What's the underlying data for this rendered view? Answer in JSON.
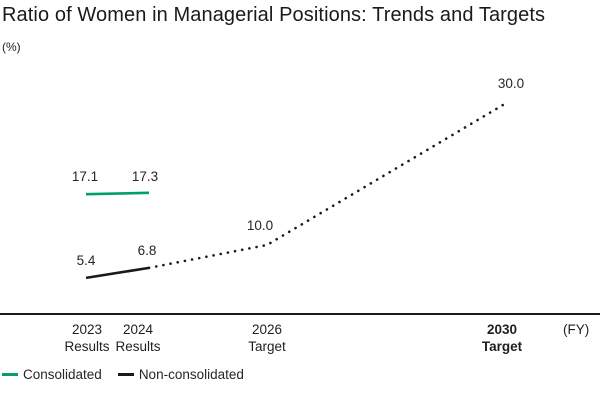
{
  "title": "Ratio of Women in Managerial Positions: Trends and Targets",
  "unit_label": "(%)",
  "axis": {
    "fy_label": "(FY)",
    "categories": [
      {
        "line1": "2023",
        "line2": "Results",
        "bold": false
      },
      {
        "line1": "2024",
        "line2": "Results",
        "bold": false
      },
      {
        "line1": "2026",
        "line2": "Target",
        "bold": false
      },
      {
        "line1": "2030",
        "line2": "Target",
        "bold": true
      }
    ]
  },
  "legend": [
    {
      "label": "Consolidated",
      "color": "#00A066"
    },
    {
      "label": "Non-consolidated",
      "color": "#1A1A1A"
    }
  ],
  "chart_data": {
    "type": "line",
    "title": "Ratio of Women in Managerial Positions: Trends and Targets",
    "ylabel": "(%)",
    "xlabel": "(FY)",
    "x_categories": [
      "2023 Results",
      "2024 Results",
      "2026 Target",
      "2030 Target"
    ],
    "series": [
      {
        "name": "Consolidated",
        "color": "#00A066",
        "line_style": "solid",
        "values": [
          17.1,
          17.3,
          null,
          null
        ]
      },
      {
        "name": "Non-consolidated",
        "color": "#1A1A1A",
        "line_style": "solid-then-dotted",
        "solid_until_index": 1,
        "values": [
          5.4,
          6.8,
          10.0,
          30.0
        ]
      }
    ],
    "value_labels": [
      "17.1",
      "17.3",
      "5.4",
      "6.8",
      "10.0",
      "30.0"
    ],
    "ylim": [
      0,
      32
    ],
    "grid": false,
    "legend_position": "bottom-left"
  }
}
